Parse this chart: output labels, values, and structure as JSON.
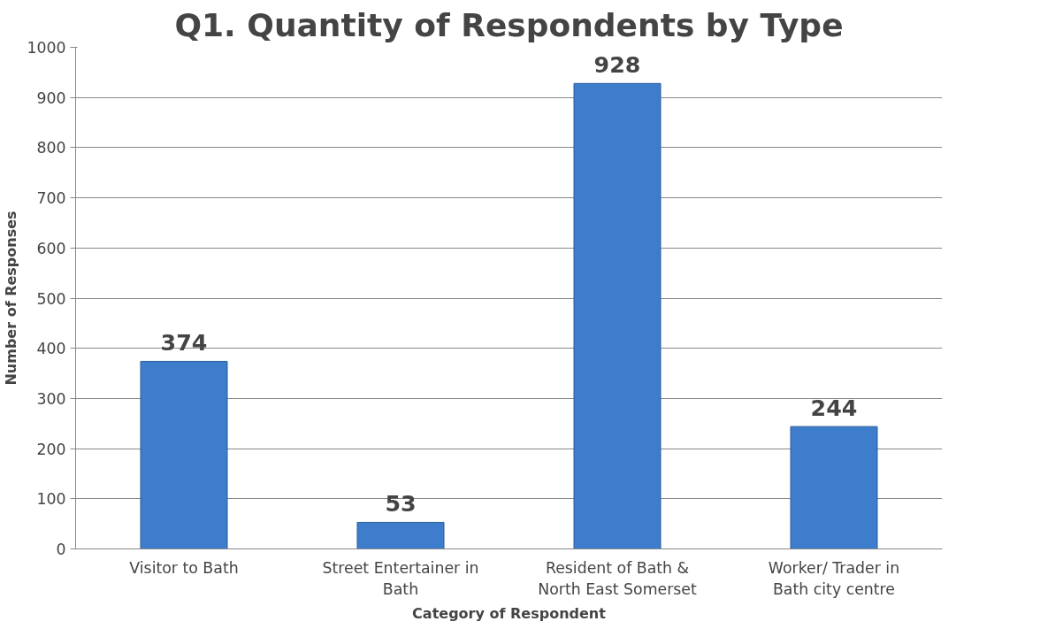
{
  "chart_data": {
    "type": "bar",
    "title": "Q1. Quantity of Respondents by Type",
    "xlabel": "Category of Respondent",
    "ylabel": "Number of Responses",
    "categories": [
      "Visitor to Bath",
      "Street Entertainer in\nBath",
      "Resident of Bath &\nNorth East Somerset",
      "Worker/ Trader in\nBath city centre"
    ],
    "values": [
      374,
      53,
      928,
      244
    ],
    "color": "#3d7dcc",
    "ylim": [
      0,
      1000
    ],
    "yticks": [
      0,
      100,
      200,
      300,
      400,
      500,
      600,
      700,
      800,
      900,
      1000
    ],
    "grid": "y",
    "data_labels": true
  }
}
